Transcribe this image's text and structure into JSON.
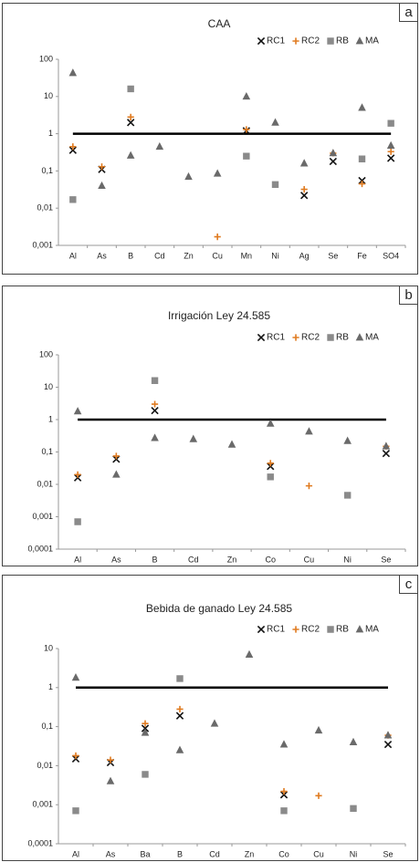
{
  "chart_data": [
    {
      "type": "scatter",
      "title": "CAA",
      "panel_label": "a",
      "log_scale": true,
      "reference_line": 1,
      "categories": [
        "Al",
        "As",
        "B",
        "Cd",
        "Zn",
        "Cu",
        "Mn",
        "Ni",
        "Ag",
        "Se",
        "Fe",
        "SO4"
      ],
      "ylim": [
        0.001,
        100
      ],
      "yticks": [
        {
          "value": 0.001,
          "label": "0,001"
        },
        {
          "value": 0.01,
          "label": "0,01"
        },
        {
          "value": 0.1,
          "label": "0,1"
        },
        1,
        10,
        100
      ],
      "series": [
        {
          "name": "RC1",
          "color": "#111111",
          "values": [
            0.36,
            0.11,
            2,
            null,
            null,
            null,
            1.2,
            null,
            0.022,
            0.18,
            0.055,
            0.22
          ]
        },
        {
          "name": "RC2",
          "color": "#e07b20",
          "values": [
            0.45,
            0.13,
            2.8,
            null,
            null,
            0.0017,
            1.3,
            null,
            0.032,
            0.3,
            0.045,
            0.33
          ]
        },
        {
          "name": "RB",
          "color": "#8a8a8a",
          "values": [
            0.017,
            null,
            16,
            null,
            null,
            null,
            0.25,
            0.043,
            null,
            null,
            0.21,
            1.9
          ]
        },
        {
          "name": "MA",
          "color": "#6a6a6a",
          "values": [
            43,
            0.04,
            0.26,
            0.45,
            0.07,
            0.085,
            10,
            2,
            0.16,
            0.3,
            5,
            0.48
          ]
        }
      ]
    },
    {
      "type": "scatter",
      "title": "Irrigación Ley 24.585",
      "panel_label": "b",
      "log_scale": true,
      "reference_line": 1,
      "categories": [
        "Al",
        "As",
        "B",
        "Cd",
        "Zn",
        "Co",
        "Cu",
        "Ni",
        "Se"
      ],
      "ylim": [
        0.0001,
        100
      ],
      "yticks": [
        {
          "value": 0.0001,
          "label": "0,0001"
        },
        {
          "value": 0.001,
          "label": "0,001"
        },
        {
          "value": 0.01,
          "label": "0,01"
        },
        {
          "value": 0.1,
          "label": "0,1"
        },
        1,
        10,
        100
      ],
      "series": [
        {
          "name": "RC1",
          "color": "#111111",
          "values": [
            0.016,
            0.06,
            1.9,
            null,
            null,
            0.036,
            null,
            null,
            0.09
          ]
        },
        {
          "name": "RC2",
          "color": "#e07b20",
          "values": [
            0.02,
            0.075,
            3,
            null,
            null,
            0.045,
            0.009,
            null,
            0.15
          ]
        },
        {
          "name": "RB",
          "color": "#8a8a8a",
          "values": [
            0.0007,
            null,
            16,
            null,
            null,
            0.017,
            null,
            0.0046,
            null
          ]
        },
        {
          "name": "MA",
          "color": "#6a6a6a",
          "values": [
            1.8,
            0.02,
            0.27,
            0.25,
            0.17,
            0.75,
            0.43,
            0.22,
            0.15
          ]
        }
      ]
    },
    {
      "type": "scatter",
      "title": "Bebida de ganado Ley 24.585",
      "panel_label": "c",
      "log_scale": true,
      "reference_line": 1,
      "categories": [
        "Al",
        "As",
        "Ba",
        "B",
        "Cd",
        "Zn",
        "Co",
        "Cu",
        "Ni",
        "Se"
      ],
      "ylim": [
        0.0001,
        10
      ],
      "yticks": [
        {
          "value": 0.0001,
          "label": "0,0001"
        },
        {
          "value": 0.001,
          "label": "0,001"
        },
        {
          "value": 0.01,
          "label": "0,01"
        },
        {
          "value": 0.1,
          "label": "0,1"
        },
        1,
        10
      ],
      "series": [
        {
          "name": "RC1",
          "color": "#111111",
          "values": [
            0.015,
            0.012,
            0.09,
            0.19,
            null,
            null,
            0.0018,
            null,
            null,
            0.035
          ]
        },
        {
          "name": "RC2",
          "color": "#e07b20",
          "values": [
            0.018,
            0.014,
            0.12,
            0.28,
            null,
            null,
            0.0022,
            0.0017,
            null,
            0.06
          ]
        },
        {
          "name": "RB",
          "color": "#8a8a8a",
          "values": [
            0.0007,
            null,
            0.006,
            1.7,
            null,
            null,
            0.0007,
            null,
            0.0008,
            null
          ]
        },
        {
          "name": "MA",
          "color": "#6a6a6a",
          "values": [
            1.8,
            0.004,
            0.07,
            0.025,
            0.12,
            7,
            0.035,
            0.08,
            0.04,
            0.06
          ]
        }
      ]
    }
  ]
}
